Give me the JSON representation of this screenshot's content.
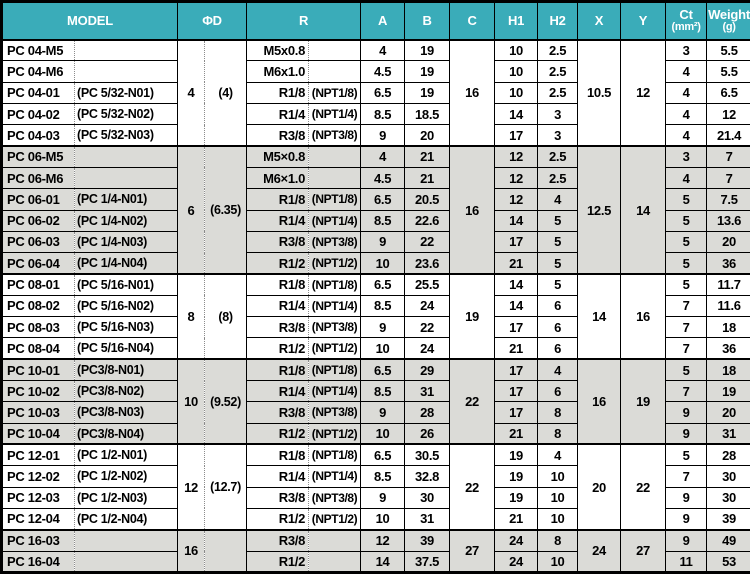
{
  "style": {
    "header_teal": "#3AACB9",
    "header_text": "#FFFFFF",
    "row_gray": "#DBDBD7",
    "border_black": "#000000",
    "dotted_gray": "#8C8C8C"
  },
  "table": {
    "header": [
      {
        "id": "model",
        "label": "MODEL",
        "span": 2
      },
      {
        "id": "d",
        "label": "ΦD",
        "span": 2
      },
      {
        "id": "r",
        "label": "R",
        "span": 2
      },
      {
        "id": "a",
        "label": "A",
        "span": 1
      },
      {
        "id": "b",
        "label": "B",
        "span": 1
      },
      {
        "id": "c",
        "label": "C",
        "span": 1
      },
      {
        "id": "h1",
        "label": "H1",
        "span": 1
      },
      {
        "id": "h2",
        "label": "H2",
        "span": 1
      },
      {
        "id": "x",
        "label": "X",
        "span": 1
      },
      {
        "id": "y",
        "label": "Y",
        "span": 1
      },
      {
        "id": "ct",
        "label": "Ct",
        "sub": "(mm²)",
        "span": 1
      },
      {
        "id": "weight",
        "label": "Weight",
        "sub": "(g)",
        "span": 1
      }
    ],
    "sections": [
      {
        "shade": "white",
        "d1": "4",
        "d2": "(4)",
        "c": "16",
        "x": "10.5",
        "y": "12",
        "rows": [
          {
            "model": "PC 04-M5",
            "paren": "",
            "r1": "M5x0.8",
            "r2": "",
            "a": "4",
            "b": "19",
            "h1": "10",
            "h2": "2.5",
            "ct": "3",
            "weight": "5.5"
          },
          {
            "model": "PC 04-M6",
            "paren": "",
            "r1": "M6x1.0",
            "r2": "",
            "a": "4.5",
            "b": "19",
            "h1": "10",
            "h2": "2.5",
            "ct": "4",
            "weight": "5.5"
          },
          {
            "model": "PC 04-01",
            "paren": "(PC 5/32-N01)",
            "r1": "R1/8",
            "r2": "(NPT1/8)",
            "a": "6.5",
            "b": "19",
            "h1": "10",
            "h2": "2.5",
            "ct": "4",
            "weight": "6.5"
          },
          {
            "model": "PC 04-02",
            "paren": "(PC 5/32-N02)",
            "r1": "R1/4",
            "r2": "(NPT1/4)",
            "a": "8.5",
            "b": "18.5",
            "h1": "14",
            "h2": "3",
            "ct": "4",
            "weight": "12"
          },
          {
            "model": "PC 04-03",
            "paren": "(PC 5/32-N03)",
            "r1": "R3/8",
            "r2": "(NPT3/8)",
            "a": "9",
            "b": "20",
            "h1": "17",
            "h2": "3",
            "ct": "4",
            "weight": "21.4"
          }
        ]
      },
      {
        "shade": "gray",
        "d1": "6",
        "d2": "(6.35)",
        "c": "16",
        "x": "12.5",
        "y": "14",
        "rows": [
          {
            "model": "PC 06-M5",
            "paren": "",
            "r1": "M5×0.8",
            "r2": "",
            "a": "4",
            "b": "21",
            "h1": "12",
            "h2": "2.5",
            "ct": "3",
            "weight": "7"
          },
          {
            "model": "PC 06-M6",
            "paren": "",
            "r1": "M6×1.0",
            "r2": "",
            "a": "4.5",
            "b": "21",
            "h1": "12",
            "h2": "2.5",
            "ct": "4",
            "weight": "7"
          },
          {
            "model": "PC 06-01",
            "paren": "(PC 1/4-N01)",
            "r1": "R1/8",
            "r2": "(NPT1/8)",
            "a": "6.5",
            "b": "20.5",
            "h1": "12",
            "h2": "4",
            "ct": "5",
            "weight": "7.5"
          },
          {
            "model": "PC 06-02",
            "paren": "(PC 1/4-N02)",
            "r1": "R1/4",
            "r2": "(NPT1/4)",
            "a": "8.5",
            "b": "22.6",
            "h1": "14",
            "h2": "5",
            "ct": "5",
            "weight": "13.6"
          },
          {
            "model": "PC 06-03",
            "paren": "(PC 1/4-N03)",
            "r1": "R3/8",
            "r2": "(NPT3/8)",
            "a": "9",
            "b": "22",
            "h1": "17",
            "h2": "5",
            "ct": "5",
            "weight": "20"
          },
          {
            "model": "PC 06-04",
            "paren": "(PC 1/4-N04)",
            "r1": "R1/2",
            "r2": "(NPT1/2)",
            "a": "10",
            "b": "23.6",
            "h1": "21",
            "h2": "5",
            "ct": "5",
            "weight": "36"
          }
        ]
      },
      {
        "shade": "white",
        "d1": "8",
        "d2": "(8)",
        "c": "19",
        "x": "14",
        "y": "16",
        "rows": [
          {
            "model": "PC 08-01",
            "paren": "(PC 5/16-N01)",
            "r1": "R1/8",
            "r2": "(NPT1/8)",
            "a": "6.5",
            "b": "25.5",
            "h1": "14",
            "h2": "5",
            "ct": "5",
            "weight": "11.7"
          },
          {
            "model": "PC 08-02",
            "paren": "(PC 5/16-N02)",
            "r1": "R1/4",
            "r2": "(NPT1/4)",
            "a": "8.5",
            "b": "24",
            "h1": "14",
            "h2": "6",
            "ct": "7",
            "weight": "11.6"
          },
          {
            "model": "PC 08-03",
            "paren": "(PC 5/16-N03)",
            "r1": "R3/8",
            "r2": "(NPT3/8)",
            "a": "9",
            "b": "22",
            "h1": "17",
            "h2": "6",
            "ct": "7",
            "weight": "18"
          },
          {
            "model": "PC 08-04",
            "paren": "(PC 5/16-N04)",
            "r1": "R1/2",
            "r2": "(NPT1/2)",
            "a": "10",
            "b": "24",
            "h1": "21",
            "h2": "6",
            "ct": "7",
            "weight": "36"
          }
        ]
      },
      {
        "shade": "gray",
        "d1": "10",
        "d2": "(9.52)",
        "c": "22",
        "x": "16",
        "y": "19",
        "rows": [
          {
            "model": "PC 10-01",
            "paren": "(PC3/8-N01)",
            "r1": "R1/8",
            "r2": "(NPT1/8)",
            "a": "6.5",
            "b": "29",
            "h1": "17",
            "h2": "4",
            "ct": "5",
            "weight": "18"
          },
          {
            "model": "PC 10-02",
            "paren": "(PC3/8-N02)",
            "r1": "R1/4",
            "r2": "(NPT1/4)",
            "a": "8.5",
            "b": "31",
            "h1": "17",
            "h2": "6",
            "ct": "7",
            "weight": "19"
          },
          {
            "model": "PC 10-03",
            "paren": "(PC3/8-N03)",
            "r1": "R3/8",
            "r2": "(NPT3/8)",
            "a": "9",
            "b": "28",
            "h1": "17",
            "h2": "8",
            "ct": "9",
            "weight": "20"
          },
          {
            "model": "PC 10-04",
            "paren": "(PC3/8-N04)",
            "r1": "R1/2",
            "r2": "(NPT1/2)",
            "a": "10",
            "b": "26",
            "h1": "21",
            "h2": "8",
            "ct": "9",
            "weight": "31"
          }
        ]
      },
      {
        "shade": "white",
        "d1": "12",
        "d2": "(12.7)",
        "c": "22",
        "x": "20",
        "y": "22",
        "rows": [
          {
            "model": "PC 12-01",
            "paren": "(PC 1/2-N01)",
            "r1": "R1/8",
            "r2": "(NPT1/8)",
            "a": "6.5",
            "b": "30.5",
            "h1": "19",
            "h2": "4",
            "ct": "5",
            "weight": "28"
          },
          {
            "model": "PC 12-02",
            "paren": "(PC 1/2-N02)",
            "r1": "R1/4",
            "r2": "(NPT1/4)",
            "a": "8.5",
            "b": "32.8",
            "h1": "19",
            "h2": "10",
            "ct": "7",
            "weight": "30"
          },
          {
            "model": "PC 12-03",
            "paren": "(PC 1/2-N03)",
            "r1": "R3/8",
            "r2": "(NPT3/8)",
            "a": "9",
            "b": "30",
            "h1": "19",
            "h2": "10",
            "ct": "9",
            "weight": "30"
          },
          {
            "model": "PC 12-04",
            "paren": "(PC 1/2-N04)",
            "r1": "R1/2",
            "r2": "(NPT1/2)",
            "a": "10",
            "b": "31",
            "h1": "21",
            "h2": "10",
            "ct": "9",
            "weight": "39"
          }
        ]
      },
      {
        "shade": "gray",
        "d1": "16",
        "d2": "",
        "c": "27",
        "x": "24",
        "y": "27",
        "rows": [
          {
            "model": "PC 16-03",
            "paren": "",
            "r1": "R3/8",
            "r2": "",
            "a": "12",
            "b": "39",
            "h1": "24",
            "h2": "8",
            "ct": "9",
            "weight": "49"
          },
          {
            "model": "PC 16-04",
            "paren": "",
            "r1": "R1/2",
            "r2": "",
            "a": "14",
            "b": "37.5",
            "h1": "24",
            "h2": "10",
            "ct": "11",
            "weight": "53"
          }
        ]
      }
    ]
  }
}
